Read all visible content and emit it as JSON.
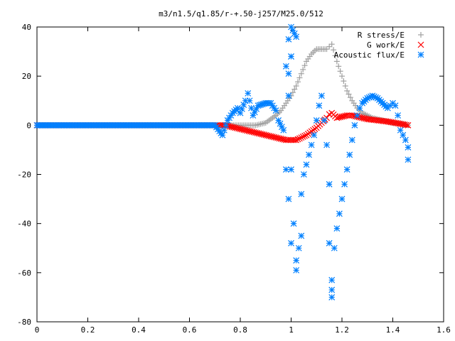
{
  "chart_data": {
    "type": "scatter",
    "title": "m3/n1.5/q1.85/r-+.50-j257/M25.0/512",
    "xlabel": "",
    "ylabel": "",
    "xlim": [
      0,
      1.6
    ],
    "ylim": [
      -80,
      40
    ],
    "x_ticks": [
      "0",
      "0.2",
      "0.4",
      "0.6",
      "0.8",
      "1",
      "1.2",
      "1.4",
      "1.6"
    ],
    "y_ticks": [
      "40",
      "20",
      "0",
      "-20",
      "-40",
      "-60",
      "-80"
    ],
    "grid": false,
    "legend_position": "top-right",
    "series": [
      {
        "name": "R stress/E",
        "marker": "plus",
        "color": "#a0a0a0",
        "points": [
          [
            0.0,
            0
          ],
          [
            0.1,
            0
          ],
          [
            0.2,
            0
          ],
          [
            0.3,
            0
          ],
          [
            0.4,
            0
          ],
          [
            0.5,
            0
          ],
          [
            0.6,
            0
          ],
          [
            0.7,
            0
          ],
          [
            0.74,
            0
          ],
          [
            0.78,
            0
          ],
          [
            0.82,
            0
          ],
          [
            0.86,
            0
          ],
          [
            0.88,
            0.5
          ],
          [
            0.9,
            1
          ],
          [
            0.92,
            2.5
          ],
          [
            0.94,
            4
          ],
          [
            0.96,
            6
          ],
          [
            0.98,
            9
          ],
          [
            1.0,
            12
          ],
          [
            1.02,
            16
          ],
          [
            1.04,
            21
          ],
          [
            1.06,
            26
          ],
          [
            1.08,
            29
          ],
          [
            1.1,
            31
          ],
          [
            1.12,
            31
          ],
          [
            1.14,
            31
          ],
          [
            1.15,
            32
          ],
          [
            1.16,
            33
          ],
          [
            1.18,
            26
          ],
          [
            1.2,
            20
          ],
          [
            1.22,
            14
          ],
          [
            1.24,
            10
          ],
          [
            1.26,
            7
          ],
          [
            1.28,
            5
          ],
          [
            1.3,
            4
          ],
          [
            1.32,
            3
          ],
          [
            1.36,
            2
          ],
          [
            1.4,
            1
          ],
          [
            1.44,
            0.5
          ],
          [
            1.46,
            0
          ]
        ]
      },
      {
        "name": "G work/E",
        "marker": "cross",
        "color": "#ff0000",
        "points": [
          [
            0.0,
            0
          ],
          [
            0.1,
            0
          ],
          [
            0.2,
            0
          ],
          [
            0.3,
            0
          ],
          [
            0.4,
            0
          ],
          [
            0.5,
            0
          ],
          [
            0.6,
            0
          ],
          [
            0.7,
            0
          ],
          [
            0.74,
            0
          ],
          [
            0.76,
            -0.5
          ],
          [
            0.78,
            -1
          ],
          [
            0.8,
            -1.5
          ],
          [
            0.82,
            -2
          ],
          [
            0.84,
            -2.5
          ],
          [
            0.86,
            -3
          ],
          [
            0.88,
            -3.5
          ],
          [
            0.9,
            -4
          ],
          [
            0.92,
            -4.5
          ],
          [
            0.94,
            -5
          ],
          [
            0.96,
            -5.5
          ],
          [
            0.98,
            -6
          ],
          [
            1.0,
            -6
          ],
          [
            1.02,
            -6
          ],
          [
            1.04,
            -5
          ],
          [
            1.06,
            -4
          ],
          [
            1.08,
            -2.5
          ],
          [
            1.1,
            -1
          ],
          [
            1.12,
            1
          ],
          [
            1.14,
            3
          ],
          [
            1.15,
            4.5
          ],
          [
            1.16,
            5
          ],
          [
            1.18,
            3
          ],
          [
            1.2,
            3.5
          ],
          [
            1.22,
            4
          ],
          [
            1.24,
            4
          ],
          [
            1.26,
            3.5
          ],
          [
            1.28,
            3
          ],
          [
            1.3,
            2.5
          ],
          [
            1.34,
            2
          ],
          [
            1.38,
            1.5
          ],
          [
            1.42,
            0.8
          ],
          [
            1.46,
            0
          ]
        ]
      },
      {
        "name": "Acoustic flux/E",
        "marker": "star",
        "color": "#0080ff",
        "points": [
          [
            0.0,
            0
          ],
          [
            0.1,
            0
          ],
          [
            0.2,
            0
          ],
          [
            0.3,
            0
          ],
          [
            0.4,
            0
          ],
          [
            0.5,
            0
          ],
          [
            0.6,
            0
          ],
          [
            0.7,
            0
          ],
          [
            0.73,
            -4
          ],
          [
            0.75,
            2
          ],
          [
            0.77,
            5
          ],
          [
            0.79,
            7
          ],
          [
            0.8,
            5
          ],
          [
            0.82,
            10
          ],
          [
            0.83,
            13
          ],
          [
            0.85,
            4
          ],
          [
            0.87,
            8
          ],
          [
            0.9,
            9
          ],
          [
            0.92,
            9
          ],
          [
            0.94,
            6
          ],
          [
            0.95,
            2
          ],
          [
            0.97,
            -2
          ],
          [
            0.98,
            -18
          ],
          [
            0.99,
            -30
          ],
          [
            1.0,
            -48
          ],
          [
            1.01,
            -40
          ],
          [
            1.0,
            -18
          ],
          [
            0.99,
            12
          ],
          [
            1.0,
            28
          ],
          [
            0.99,
            35
          ],
          [
            1.02,
            -55
          ],
          [
            1.02,
            -59
          ],
          [
            1.04,
            -45
          ],
          [
            1.04,
            -28
          ],
          [
            1.05,
            -20
          ],
          [
            1.06,
            -16
          ],
          [
            1.07,
            -12
          ],
          [
            1.08,
            -8
          ],
          [
            1.09,
            -4
          ],
          [
            1.1,
            2
          ],
          [
            1.11,
            8
          ],
          [
            1.12,
            12
          ],
          [
            1.13,
            2
          ],
          [
            1.14,
            -8
          ],
          [
            1.15,
            -24
          ],
          [
            1.15,
            -48
          ],
          [
            1.16,
            -63
          ],
          [
            1.16,
            -67
          ],
          [
            1.16,
            -70
          ],
          [
            1.17,
            -50
          ],
          [
            1.18,
            -42
          ],
          [
            1.19,
            -36
          ],
          [
            1.2,
            -30
          ],
          [
            1.21,
            -24
          ],
          [
            1.22,
            -18
          ],
          [
            1.23,
            -12
          ],
          [
            1.24,
            -6
          ],
          [
            1.25,
            0
          ],
          [
            1.26,
            4
          ],
          [
            1.27,
            7
          ],
          [
            1.28,
            9
          ],
          [
            1.3,
            11
          ],
          [
            1.32,
            12
          ],
          [
            1.34,
            11
          ],
          [
            1.36,
            9
          ],
          [
            1.38,
            7
          ],
          [
            1.39,
            8
          ],
          [
            1.4,
            9
          ],
          [
            1.41,
            8
          ],
          [
            1.42,
            4
          ],
          [
            1.43,
            -2
          ],
          [
            1.44,
            -4
          ],
          [
            1.45,
            -6
          ],
          [
            1.46,
            -9
          ],
          [
            1.46,
            -14
          ],
          [
            0.98,
            24
          ],
          [
            1.0,
            40
          ],
          [
            1.02,
            36
          ],
          [
            0.99,
            21
          ],
          [
            1.03,
            -50
          ],
          [
            1.0,
            28
          ]
        ]
      }
    ]
  }
}
